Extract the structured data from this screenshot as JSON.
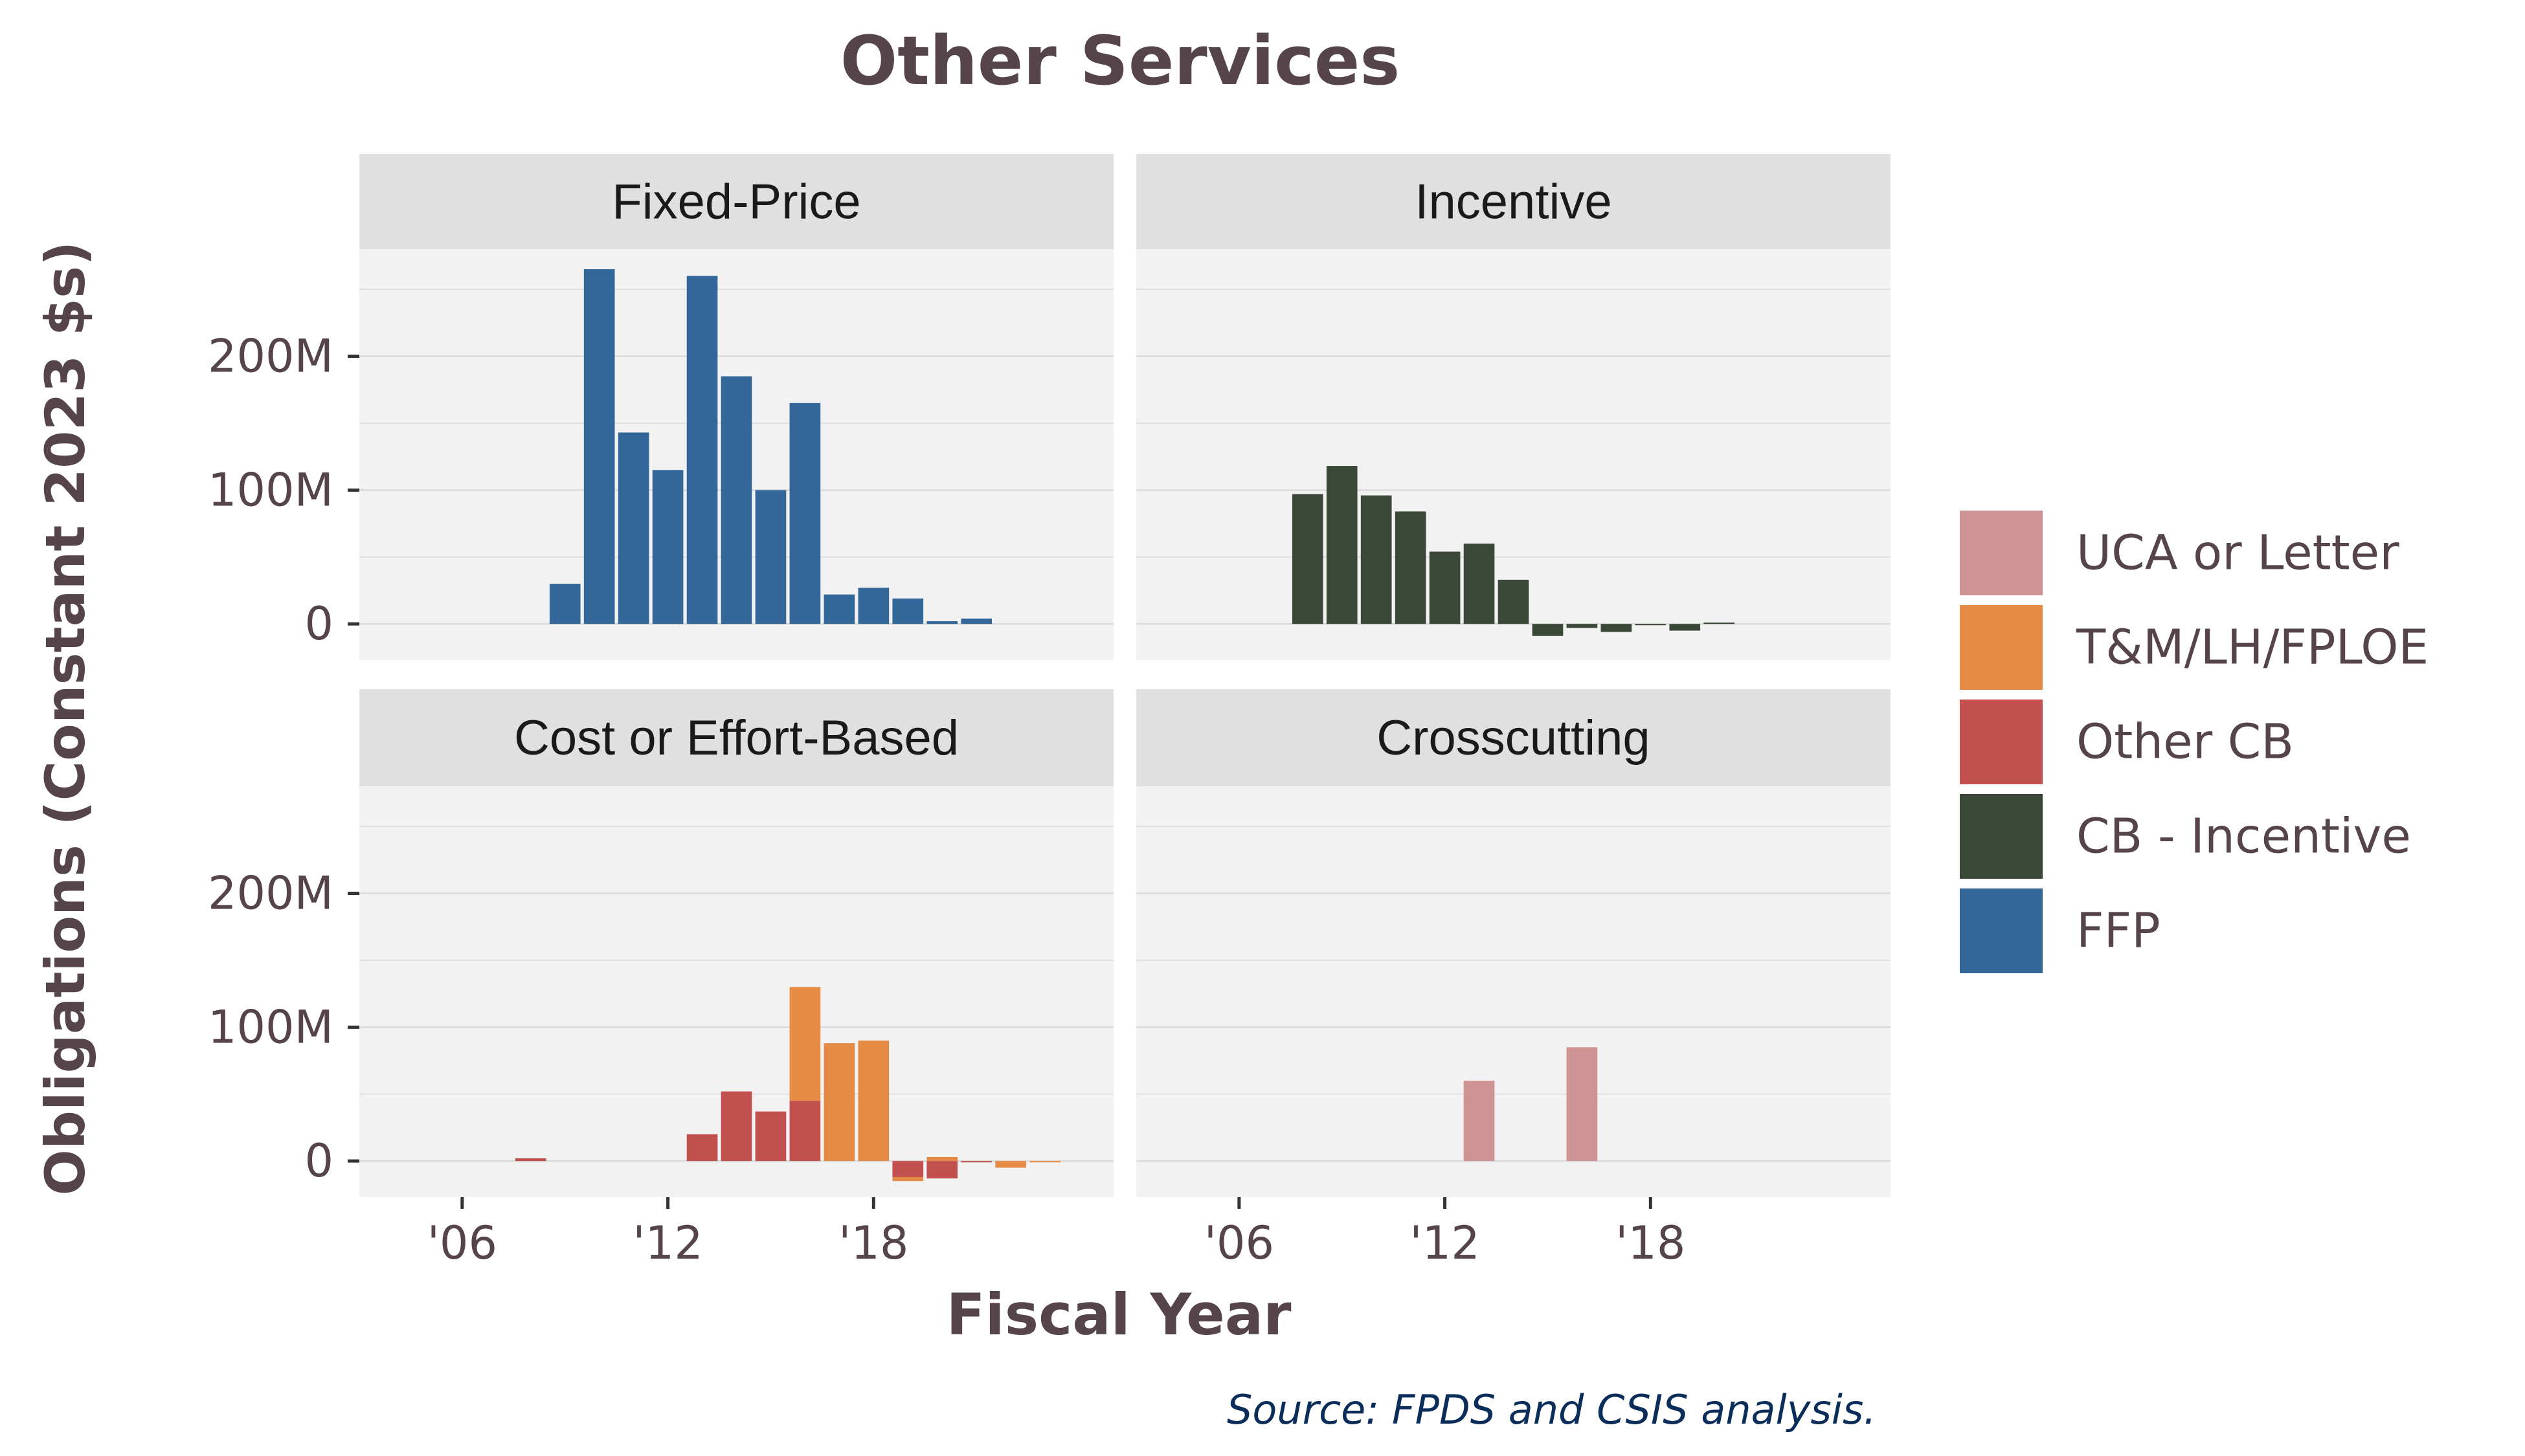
{
  "chart_data": {
    "type": "bar",
    "title": "Other Services",
    "xlabel": "Fiscal Year",
    "ylabel": "Obligations (Constant 2023 $s)",
    "source": "Source: FPDS and CSIS analysis.",
    "facet_layout": "2x2",
    "stacked": true,
    "grid": true,
    "legend_position": "right",
    "x_range": [
      2003,
      2025
    ],
    "ylim": [
      -27000000,
      280000000
    ],
    "x_ticks": [
      {
        "value": 2006,
        "label": "'06"
      },
      {
        "value": 2012,
        "label": "'12"
      },
      {
        "value": 2018,
        "label": "'18"
      }
    ],
    "y_ticks": [
      {
        "value": 0,
        "label": "0"
      },
      {
        "value": 100000000,
        "label": "100M"
      },
      {
        "value": 200000000,
        "label": "200M"
      }
    ],
    "colors": {
      "UCA or Letter": "#d09394",
      "T&M/LH/FPLOE": "#e58b45",
      "Other CB": "#c2504f",
      "CB - Incentive": "#3a4837",
      "FFP": "#336699"
    },
    "legend": [
      "UCA or Letter",
      "T&M/LH/FPLOE",
      "Other CB",
      "CB - Incentive",
      "FFP"
    ],
    "panels": [
      {
        "title": "Fixed-Price",
        "series": [
          {
            "name": "FFP",
            "x": [
              2009,
              2010,
              2011,
              2012,
              2013,
              2014,
              2015,
              2016,
              2017,
              2018,
              2019,
              2020,
              2021
            ],
            "values": [
              30000000,
              265000000,
              143000000,
              115000000,
              260000000,
              185000000,
              100000000,
              165000000,
              22000000,
              27000000,
              19000000,
              2000000,
              4000000
            ]
          }
        ]
      },
      {
        "title": "Incentive",
        "series": [
          {
            "name": "CB - Incentive",
            "x": [
              2008,
              2009,
              2010,
              2011,
              2012,
              2013,
              2014,
              2015,
              2016,
              2017,
              2018,
              2019,
              2020,
              2021
            ],
            "values": [
              97000000,
              118000000,
              96000000,
              84000000,
              54000000,
              60000000,
              33000000,
              -9000000,
              -3000000,
              -6000000,
              -1000000,
              -5000000,
              1000000,
              0
            ]
          }
        ]
      },
      {
        "title": "Cost or Effort-Based",
        "series": [
          {
            "name": "Other CB",
            "x": [
              2008,
              2013,
              2014,
              2015,
              2016,
              2019,
              2020,
              2021
            ],
            "values": [
              2000000,
              20000000,
              52000000,
              37000000,
              45000000,
              -12000000,
              -13000000,
              -1000000
            ]
          },
          {
            "name": "T&M/LH/FPLOE",
            "x": [
              2016,
              2017,
              2018,
              2019,
              2020,
              2022,
              2023
            ],
            "values": [
              85000000,
              88000000,
              90000000,
              -3000000,
              3000000,
              -5000000,
              -1000000
            ]
          }
        ]
      },
      {
        "title": "Crosscutting",
        "series": [
          {
            "name": "UCA or Letter",
            "x": [
              2013,
              2016
            ],
            "values": [
              60000000,
              85000000
            ]
          }
        ]
      }
    ]
  }
}
